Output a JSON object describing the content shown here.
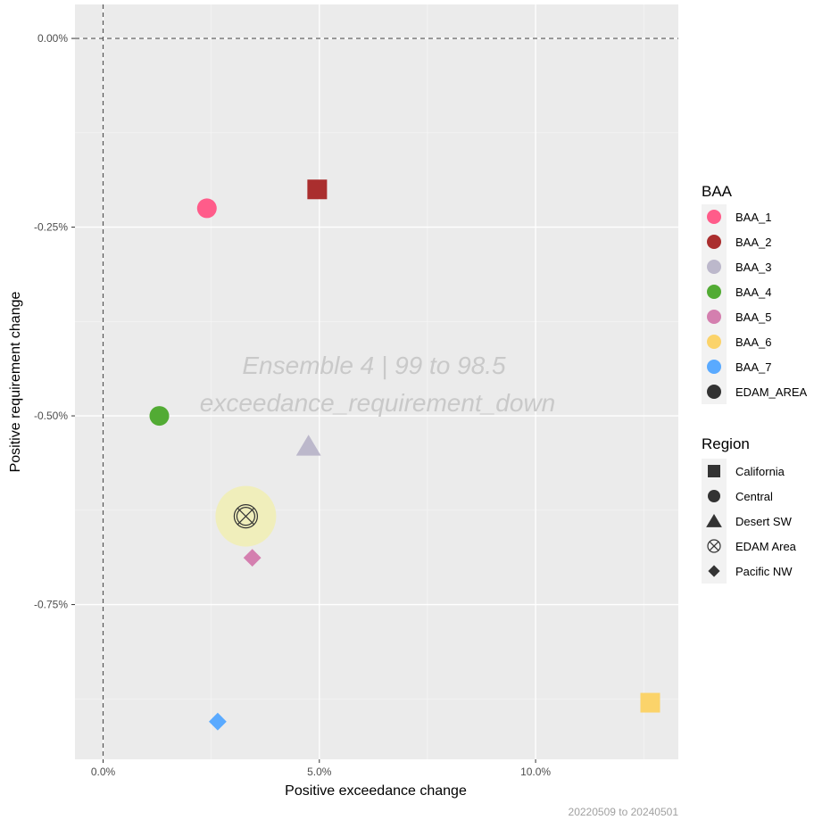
{
  "chart_data": {
    "type": "scatter",
    "xlabel": "Positive exceedance change",
    "ylabel": "Positive requirement change",
    "x_ticks": [
      {
        "value": 0.0,
        "label": "0.0%"
      },
      {
        "value": 5.0,
        "label": "5.0%"
      },
      {
        "value": 10.0,
        "label": "10.0%"
      }
    ],
    "y_ticks": [
      {
        "value": 0.0,
        "label": "0.00%"
      },
      {
        "value": -0.25,
        "label": "-0.25%"
      },
      {
        "value": -0.5,
        "label": "-0.50%"
      },
      {
        "value": -0.75,
        "label": "-0.75%"
      }
    ],
    "xlim": [
      -0.65,
      13.3
    ],
    "ylim": [
      -0.955,
      0.045
    ],
    "watermark": [
      "Ensemble 4 | 99 to 98.5",
      "exceedance_requirement_down"
    ],
    "caption": "20220509 to 20240501",
    "reference_lines": {
      "x": 0,
      "y": 0
    },
    "points": [
      {
        "baa": "BAA_1",
        "region": "Central",
        "x": 2.4,
        "y": -0.225
      },
      {
        "baa": "BAA_2",
        "region": "California",
        "x": 4.95,
        "y": -0.2
      },
      {
        "baa": "BAA_3",
        "region": "Desert SW",
        "x": 4.75,
        "y": -0.54
      },
      {
        "baa": "BAA_4",
        "region": "Central",
        "x": 1.3,
        "y": -0.5
      },
      {
        "baa": "BAA_5",
        "region": "Pacific NW",
        "x": 3.45,
        "y": -0.688
      },
      {
        "baa": "BAA_6",
        "region": "California",
        "x": 12.65,
        "y": -0.88
      },
      {
        "baa": "BAA_7",
        "region": "Pacific NW",
        "x": 2.65,
        "y": -0.905
      },
      {
        "baa": "EDAM_AREA",
        "region": "EDAM Area",
        "x": 3.3,
        "y": -0.633
      }
    ],
    "legend": {
      "baa_title": "BAA",
      "baa": [
        {
          "label": "BAA_1",
          "color": "#ff5c8a"
        },
        {
          "label": "BAA_2",
          "color": "#aa2e2e"
        },
        {
          "label": "BAA_3",
          "color": "#bcb8cb"
        },
        {
          "label": "BAA_4",
          "color": "#52ab34"
        },
        {
          "label": "BAA_5",
          "color": "#d47faf"
        },
        {
          "label": "BAA_6",
          "color": "#fbd36a"
        },
        {
          "label": "BAA_7",
          "color": "#5aaaff"
        },
        {
          "label": "EDAM_AREA",
          "color": "#333333"
        }
      ],
      "region_title": "Region",
      "region": [
        {
          "label": "California",
          "shape": "square"
        },
        {
          "label": "Central",
          "shape": "circle"
        },
        {
          "label": "Desert SW",
          "shape": "triangle"
        },
        {
          "label": "EDAM Area",
          "shape": "circle-x"
        },
        {
          "label": "Pacific NW",
          "shape": "diamond"
        }
      ]
    },
    "highlight_color": "#f0eebb",
    "panel_color": "#ebebeb",
    "grid": true
  }
}
